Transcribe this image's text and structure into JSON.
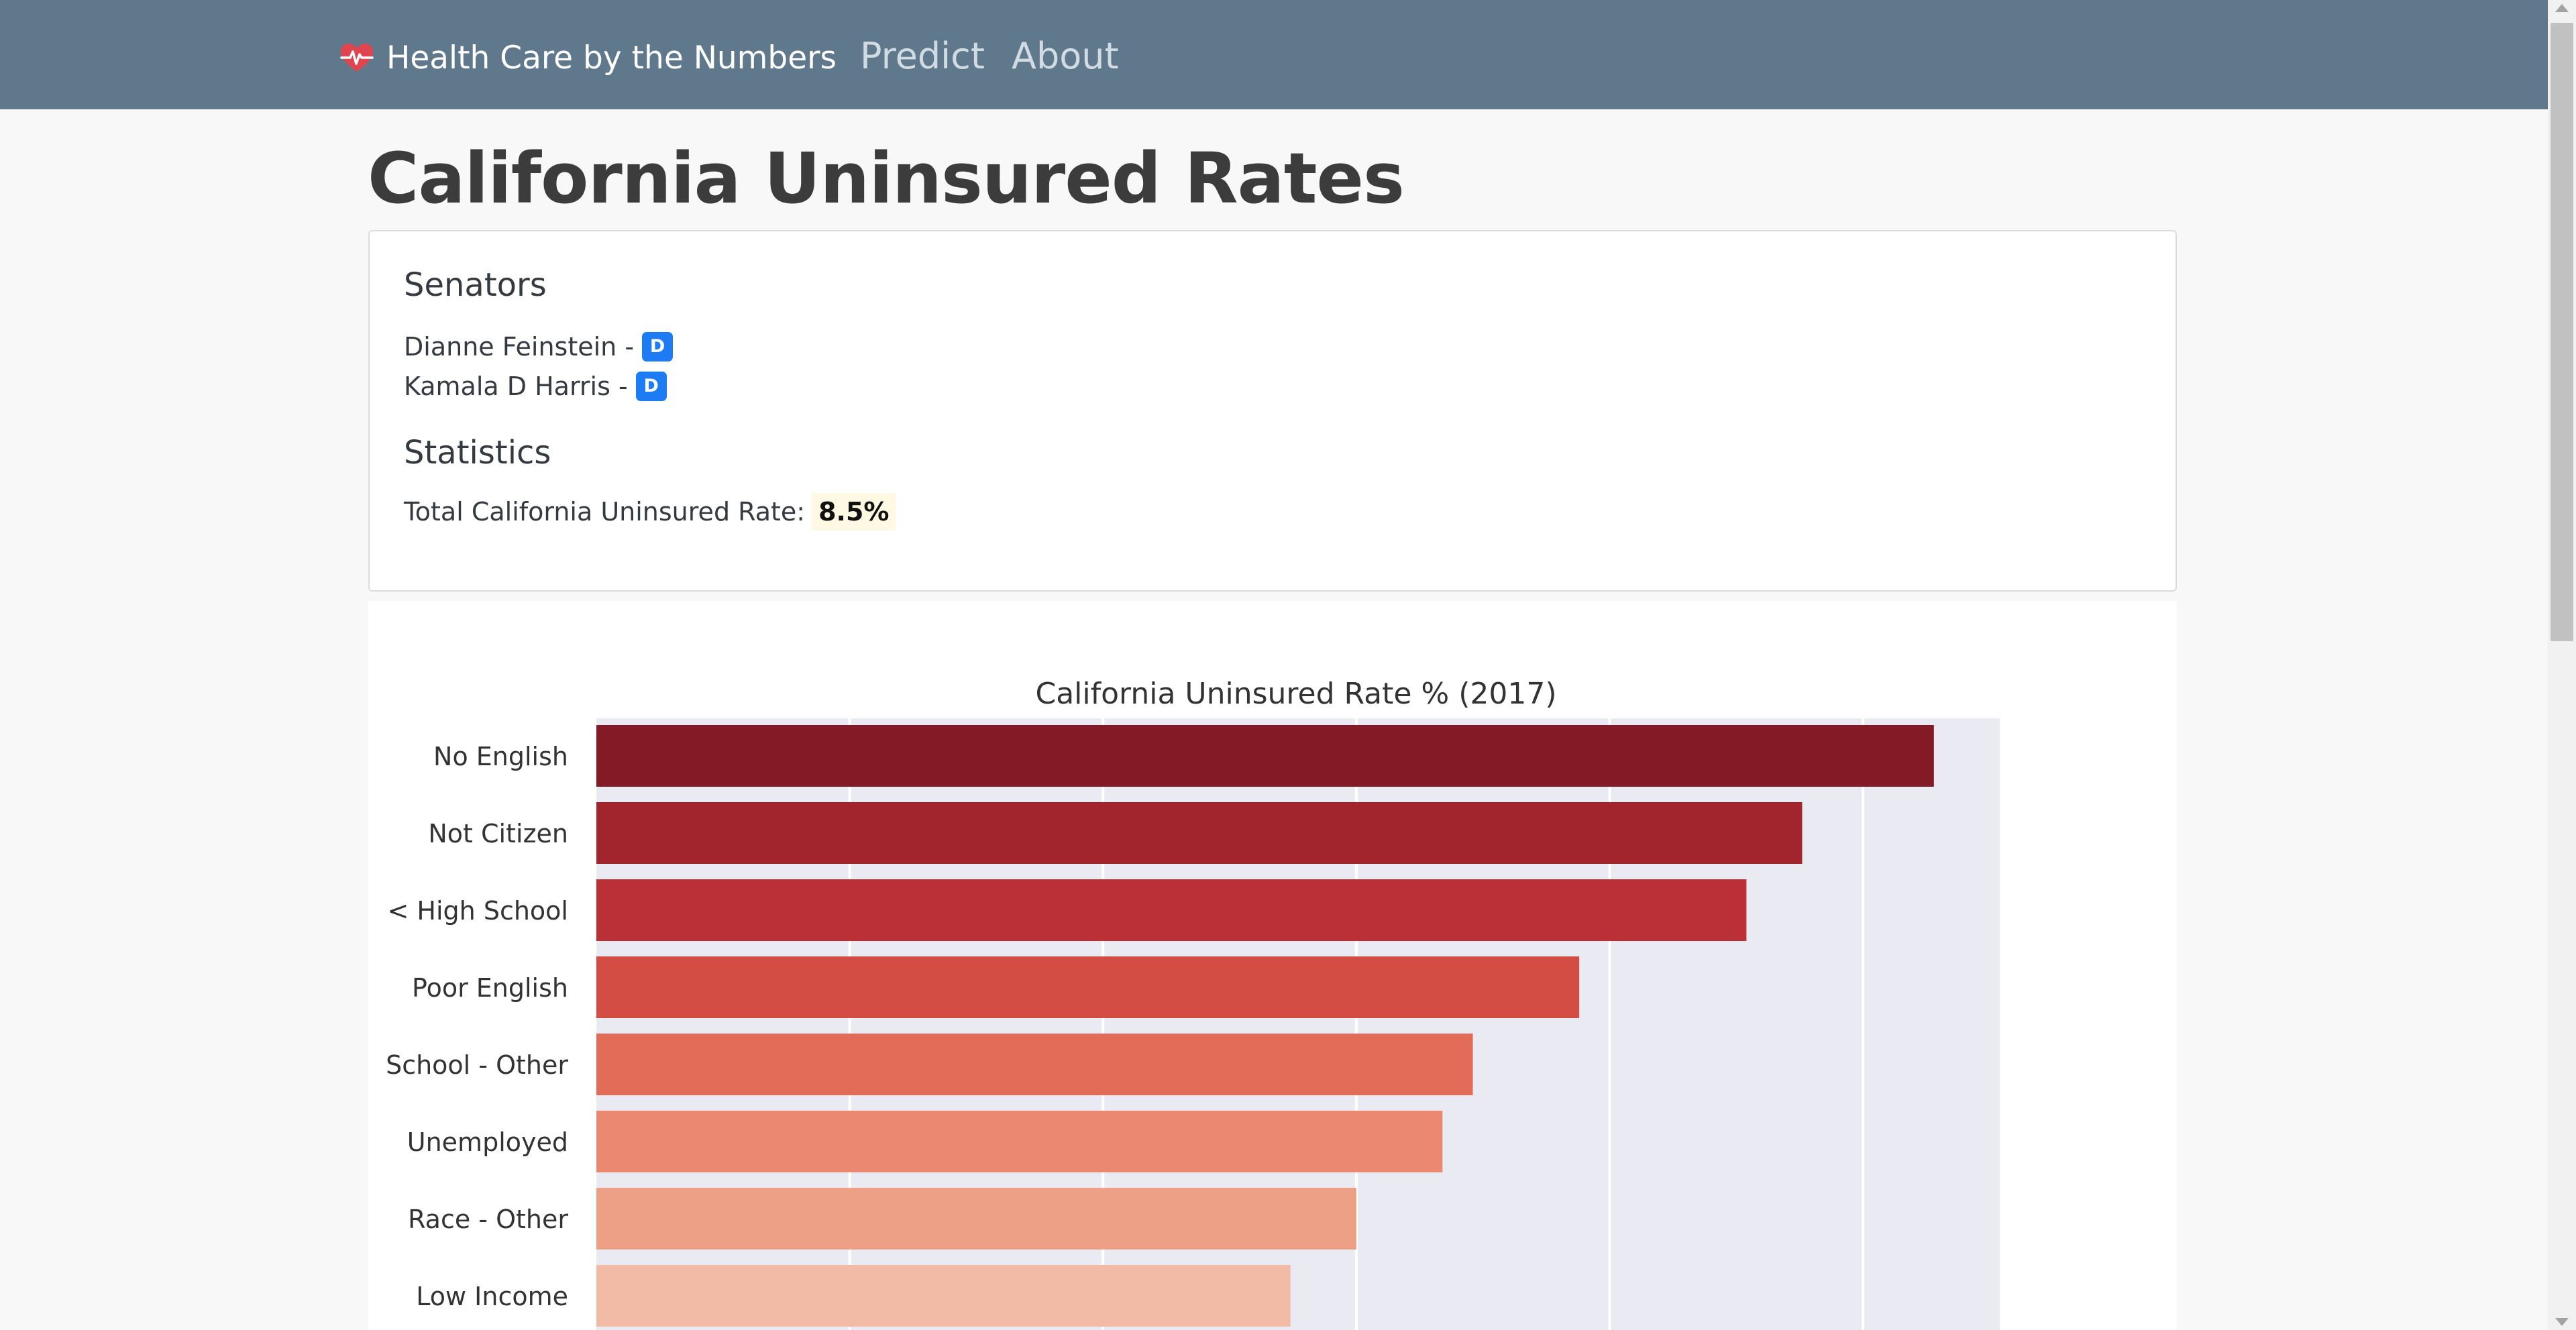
{
  "navbar": {
    "brand_icon": "heart-pulse-icon",
    "brand": "Health Care by the Numbers",
    "links": [
      "Predict",
      "About"
    ]
  },
  "page": {
    "title": "California Uninsured Rates"
  },
  "senators": {
    "heading": "Senators",
    "items": [
      {
        "name": "Dianne Feinstein -",
        "party": "D"
      },
      {
        "name": "Kamala D Harris -",
        "party": "D"
      }
    ]
  },
  "statistics": {
    "heading": "Statistics",
    "total_label": "Total California Uninsured Rate:",
    "total_value": "8.5%"
  },
  "colors": {
    "navbar": "#5f788b",
    "badge": "#1d7bf3",
    "highlight": "#fff8e3"
  },
  "chart_data": {
    "type": "bar",
    "orientation": "horizontal",
    "title": "California Uninsured Rate % (2017)",
    "xlabel": "",
    "ylabel": "",
    "grid": true,
    "xlim": [
      0,
      27.7
    ],
    "categories": [
      "No English",
      "Not Citizen",
      "< High School",
      "Poor English",
      "School - Other",
      "Unemployed",
      "Race - Other",
      "Low Income"
    ],
    "values": [
      26.4,
      23.8,
      22.7,
      19.4,
      17.3,
      16.7,
      15.0,
      13.7
    ],
    "colors": [
      "#841a25",
      "#a2252e",
      "#bb3036",
      "#d44d44",
      "#e36c58",
      "#eb8871",
      "#eea087",
      "#f2bba6"
    ]
  }
}
